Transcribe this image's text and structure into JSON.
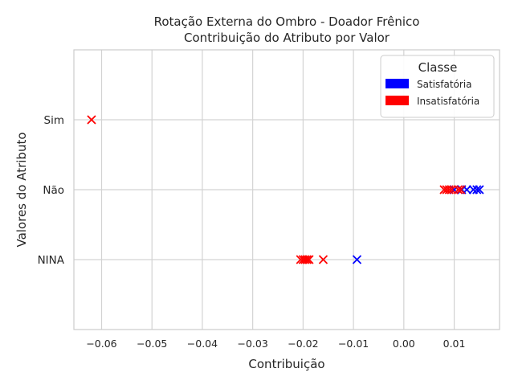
{
  "chart_data": {
    "type": "scatter",
    "title": "Rotação Externa do Ombro - Doador Frênico",
    "subtitle": "Contribuição do Atributo por Valor",
    "xlabel": "Contribuição",
    "ylabel": "Valores do Atributo",
    "xlim": [
      -0.0655,
      0.019
    ],
    "x_ticks": [
      -0.06,
      -0.05,
      -0.04,
      -0.03,
      -0.02,
      -0.01,
      0.0,
      0.01
    ],
    "x_tick_labels": [
      "−0.06",
      "−0.05",
      "−0.04",
      "−0.03",
      "−0.02",
      "−0.01",
      "0.00",
      "0.01"
    ],
    "categories": [
      "NINA",
      "Não",
      "Sim"
    ],
    "grid": true,
    "marker": "x",
    "legend": {
      "title": "Classe",
      "placement": "top-right",
      "entries": [
        {
          "label": "Satisfatória",
          "color": "#0000ff"
        },
        {
          "label": "Insatisfatória",
          "color": "#ff0000"
        }
      ]
    },
    "series": [
      {
        "name": "Satisfatória",
        "color": "#0000ff",
        "points": [
          {
            "x": -0.0093,
            "y": "NINA"
          },
          {
            "x": 0.01,
            "y": "Não"
          },
          {
            "x": 0.0115,
            "y": "Não"
          },
          {
            "x": 0.0125,
            "y": "Não"
          },
          {
            "x": 0.0138,
            "y": "Não"
          },
          {
            "x": 0.0145,
            "y": "Não"
          },
          {
            "x": 0.015,
            "y": "Não"
          }
        ]
      },
      {
        "name": "Insatisfatória",
        "color": "#ff0000",
        "points": [
          {
            "x": -0.062,
            "y": "Sim"
          },
          {
            "x": -0.0205,
            "y": "NINA"
          },
          {
            "x": -0.02,
            "y": "NINA"
          },
          {
            "x": -0.0196,
            "y": "NINA"
          },
          {
            "x": -0.0192,
            "y": "NINA"
          },
          {
            "x": -0.0188,
            "y": "NINA"
          },
          {
            "x": -0.016,
            "y": "NINA"
          },
          {
            "x": 0.008,
            "y": "Não"
          },
          {
            "x": 0.0085,
            "y": "Não"
          },
          {
            "x": 0.009,
            "y": "Não"
          },
          {
            "x": 0.0095,
            "y": "Não"
          },
          {
            "x": 0.0108,
            "y": "Não"
          },
          {
            "x": 0.0113,
            "y": "Não"
          }
        ]
      }
    ]
  }
}
